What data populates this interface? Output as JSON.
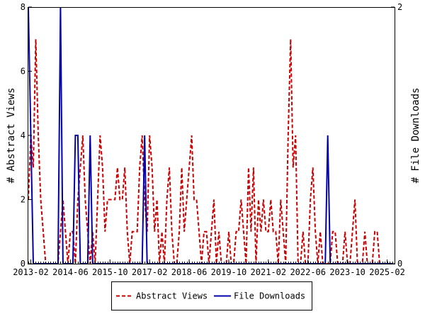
{
  "chart_data": {
    "type": "line",
    "title": "",
    "xlabel": "",
    "ylabel": "# Abstract Views",
    "y2label": "# File Downloads",
    "x_ticks": [
      "2013-02",
      "2014-06",
      "2015-10",
      "2017-02",
      "2018-06",
      "2019-10",
      "2021-02",
      "2022-06",
      "2023-10",
      "2025-02"
    ],
    "ylim": [
      0,
      8
    ],
    "y_ticks": [
      0,
      2,
      4,
      6,
      8
    ],
    "y2lim": [
      0,
      2
    ],
    "y2_ticks": [
      0,
      2
    ],
    "legend": "bottom-center",
    "grid": false,
    "series": [
      {
        "name": "Abstract Views",
        "axis": "left",
        "color": "#cc0000",
        "style": "dashed",
        "points": [
          [
            "2013-01",
            2
          ],
          [
            "2013-02",
            4
          ],
          [
            "2013-03",
            3
          ],
          [
            "2013-04",
            7
          ],
          [
            "2013-05",
            4
          ],
          [
            "2013-06",
            2
          ],
          [
            "2013-07",
            1
          ],
          [
            "2013-08",
            0
          ],
          [
            "2013-09",
            0
          ],
          [
            "2013-10",
            0
          ],
          [
            "2013-11",
            0
          ],
          [
            "2013-12",
            0
          ],
          [
            "2014-01",
            0
          ],
          [
            "2014-02",
            1
          ],
          [
            "2014-03",
            2
          ],
          [
            "2014-04",
            1
          ],
          [
            "2014-05",
            0
          ],
          [
            "2014-06",
            1
          ],
          [
            "2014-07",
            1
          ],
          [
            "2014-08",
            0
          ],
          [
            "2014-09",
            2
          ],
          [
            "2014-10",
            3
          ],
          [
            "2014-11",
            4
          ],
          [
            "2014-12",
            2
          ],
          [
            "2015-01",
            1
          ],
          [
            "2015-02",
            0
          ],
          [
            "2015-03",
            1
          ],
          [
            "2015-04",
            0
          ],
          [
            "2015-05",
            2
          ],
          [
            "2015-06",
            4
          ],
          [
            "2015-07",
            3
          ],
          [
            "2015-08",
            1
          ],
          [
            "2015-09",
            2
          ],
          [
            "2015-10",
            2
          ],
          [
            "2015-11",
            2
          ],
          [
            "2015-12",
            2
          ],
          [
            "2016-01",
            3
          ],
          [
            "2016-02",
            2
          ],
          [
            "2016-03",
            2
          ],
          [
            "2016-04",
            3
          ],
          [
            "2016-05",
            1
          ],
          [
            "2016-06",
            0
          ],
          [
            "2016-07",
            1
          ],
          [
            "2016-08",
            1
          ],
          [
            "2016-09",
            1
          ],
          [
            "2016-10",
            3
          ],
          [
            "2016-11",
            4
          ],
          [
            "2016-12",
            2
          ],
          [
            "2017-01",
            1
          ],
          [
            "2017-02",
            4
          ],
          [
            "2017-03",
            3
          ],
          [
            "2017-04",
            1
          ],
          [
            "2017-05",
            2
          ],
          [
            "2017-06",
            0
          ],
          [
            "2017-07",
            1
          ],
          [
            "2017-08",
            0
          ],
          [
            "2017-09",
            2
          ],
          [
            "2017-10",
            3
          ],
          [
            "2017-11",
            1
          ],
          [
            "2017-12",
            0
          ],
          [
            "2018-01",
            0
          ],
          [
            "2018-02",
            1
          ],
          [
            "2018-03",
            3
          ],
          [
            "2018-04",
            1
          ],
          [
            "2018-05",
            2
          ],
          [
            "2018-06",
            3
          ],
          [
            "2018-07",
            4
          ],
          [
            "2018-08",
            2
          ],
          [
            "2018-09",
            2
          ],
          [
            "2018-10",
            1
          ],
          [
            "2018-11",
            0
          ],
          [
            "2018-12",
            1
          ],
          [
            "2019-01",
            1
          ],
          [
            "2019-02",
            0
          ],
          [
            "2019-03",
            1
          ],
          [
            "2019-04",
            2
          ],
          [
            "2019-05",
            0
          ],
          [
            "2019-06",
            1
          ],
          [
            "2019-07",
            0
          ],
          [
            "2019-08",
            0
          ],
          [
            "2019-09",
            0
          ],
          [
            "2019-10",
            1
          ],
          [
            "2019-11",
            0
          ],
          [
            "2019-12",
            0
          ],
          [
            "2020-01",
            1
          ],
          [
            "2020-02",
            1
          ],
          [
            "2020-03",
            2
          ],
          [
            "2020-04",
            1
          ],
          [
            "2020-05",
            0
          ],
          [
            "2020-06",
            3
          ],
          [
            "2020-07",
            1
          ],
          [
            "2020-08",
            3
          ],
          [
            "2020-09",
            0
          ],
          [
            "2020-10",
            2
          ],
          [
            "2020-11",
            1
          ],
          [
            "2020-12",
            2
          ],
          [
            "2021-01",
            1
          ],
          [
            "2021-02",
            1
          ],
          [
            "2021-03",
            2
          ],
          [
            "2021-04",
            1
          ],
          [
            "2021-05",
            1
          ],
          [
            "2021-06",
            0
          ],
          [
            "2021-07",
            2
          ],
          [
            "2021-08",
            1
          ],
          [
            "2021-09",
            0
          ],
          [
            "2021-10",
            4
          ],
          [
            "2021-11",
            7
          ],
          [
            "2021-12",
            3
          ],
          [
            "2022-01",
            4
          ],
          [
            "2022-02",
            0
          ],
          [
            "2022-03",
            0
          ],
          [
            "2022-04",
            1
          ],
          [
            "2022-05",
            0
          ],
          [
            "2022-06",
            0
          ],
          [
            "2022-07",
            2
          ],
          [
            "2022-08",
            3
          ],
          [
            "2022-09",
            1
          ],
          [
            "2022-10",
            0
          ],
          [
            "2022-11",
            1
          ],
          [
            "2022-12",
            0
          ],
          [
            "2023-01",
            0
          ],
          [
            "2023-02",
            0
          ],
          [
            "2023-03",
            0
          ],
          [
            "2023-04",
            1
          ],
          [
            "2023-05",
            1
          ],
          [
            "2023-06",
            0
          ],
          [
            "2023-07",
            0
          ],
          [
            "2023-08",
            0
          ],
          [
            "2023-09",
            1
          ],
          [
            "2023-10",
            0
          ],
          [
            "2023-11",
            0
          ],
          [
            "2023-12",
            1
          ],
          [
            "2024-01",
            2
          ],
          [
            "2024-02",
            0
          ],
          [
            "2024-03",
            0
          ],
          [
            "2024-04",
            0
          ],
          [
            "2024-05",
            1
          ],
          [
            "2024-06",
            0
          ],
          [
            "2024-07",
            0
          ],
          [
            "2024-08",
            0
          ],
          [
            "2024-09",
            1
          ],
          [
            "2024-10",
            1
          ],
          [
            "2024-11",
            0
          ],
          [
            "2024-12",
            0
          ],
          [
            "2025-01",
            0
          ],
          [
            "2025-02",
            0
          ],
          [
            "2025-03",
            0
          ],
          [
            "2025-04",
            0
          ]
        ]
      },
      {
        "name": "File Downloads",
        "axis": "right",
        "color": "#0000aa",
        "style": "solid",
        "points": [
          [
            "2013-01",
            2
          ],
          [
            "2013-02",
            1
          ],
          [
            "2013-03",
            0
          ],
          [
            "2013-04",
            0
          ],
          [
            "2013-05",
            0
          ],
          [
            "2013-06",
            0
          ],
          [
            "2013-07",
            0
          ],
          [
            "2013-08",
            0
          ],
          [
            "2013-09",
            0
          ],
          [
            "2013-10",
            0
          ],
          [
            "2013-11",
            0
          ],
          [
            "2013-12",
            0
          ],
          [
            "2014-01",
            0
          ],
          [
            "2014-02",
            2
          ],
          [
            "2014-03",
            0
          ],
          [
            "2014-04",
            0
          ],
          [
            "2014-05",
            0
          ],
          [
            "2014-06",
            0
          ],
          [
            "2014-07",
            0
          ],
          [
            "2014-08",
            1
          ],
          [
            "2014-09",
            1
          ],
          [
            "2014-10",
            0
          ],
          [
            "2014-11",
            0
          ],
          [
            "2014-12",
            0
          ],
          [
            "2015-01",
            0
          ],
          [
            "2015-02",
            1
          ],
          [
            "2015-03",
            0
          ],
          [
            "2015-04",
            0
          ],
          [
            "2015-05",
            0
          ],
          [
            "2015-06",
            0
          ],
          [
            "2015-07",
            0
          ],
          [
            "2015-08",
            0
          ],
          [
            "2015-09",
            0
          ],
          [
            "2015-10",
            0
          ],
          [
            "2015-11",
            0
          ],
          [
            "2015-12",
            0
          ],
          [
            "2016-01",
            0
          ],
          [
            "2016-02",
            0
          ],
          [
            "2016-03",
            0
          ],
          [
            "2016-04",
            0
          ],
          [
            "2016-05",
            0
          ],
          [
            "2016-06",
            0
          ],
          [
            "2016-07",
            0
          ],
          [
            "2016-08",
            0
          ],
          [
            "2016-09",
            0
          ],
          [
            "2016-10",
            0
          ],
          [
            "2016-11",
            0
          ],
          [
            "2016-12",
            1
          ],
          [
            "2017-01",
            0
          ],
          [
            "2017-02",
            0
          ],
          [
            "2017-03",
            0
          ],
          [
            "2017-04",
            0
          ],
          [
            "2017-05",
            0
          ],
          [
            "2017-06",
            0
          ],
          [
            "2017-07",
            0
          ],
          [
            "2017-08",
            0
          ],
          [
            "2017-09",
            0
          ],
          [
            "2017-10",
            0
          ],
          [
            "2017-11",
            0
          ],
          [
            "2017-12",
            0
          ],
          [
            "2018-01",
            0
          ],
          [
            "2018-02",
            0
          ],
          [
            "2018-03",
            0
          ],
          [
            "2018-04",
            0
          ],
          [
            "2018-05",
            0
          ],
          [
            "2018-06",
            0
          ],
          [
            "2018-07",
            0
          ],
          [
            "2018-08",
            0
          ],
          [
            "2018-09",
            0
          ],
          [
            "2018-10",
            0
          ],
          [
            "2018-11",
            0
          ],
          [
            "2018-12",
            0
          ],
          [
            "2019-01",
            0
          ],
          [
            "2019-02",
            0
          ],
          [
            "2019-03",
            0
          ],
          [
            "2019-04",
            0
          ],
          [
            "2019-05",
            0
          ],
          [
            "2019-06",
            0
          ],
          [
            "2019-07",
            0
          ],
          [
            "2019-08",
            0
          ],
          [
            "2019-09",
            0
          ],
          [
            "2019-10",
            0
          ],
          [
            "2019-11",
            0
          ],
          [
            "2019-12",
            0
          ],
          [
            "2020-01",
            0
          ],
          [
            "2020-02",
            0
          ],
          [
            "2020-03",
            0
          ],
          [
            "2020-04",
            0
          ],
          [
            "2020-05",
            0
          ],
          [
            "2020-06",
            0
          ],
          [
            "2020-07",
            0
          ],
          [
            "2020-08",
            0
          ],
          [
            "2020-09",
            0
          ],
          [
            "2020-10",
            0
          ],
          [
            "2020-11",
            0
          ],
          [
            "2020-12",
            0
          ],
          [
            "2021-01",
            0
          ],
          [
            "2021-02",
            0
          ],
          [
            "2021-03",
            0
          ],
          [
            "2021-04",
            0
          ],
          [
            "2021-05",
            0
          ],
          [
            "2021-06",
            0
          ],
          [
            "2021-07",
            0
          ],
          [
            "2021-08",
            0
          ],
          [
            "2021-09",
            0
          ],
          [
            "2021-10",
            0
          ],
          [
            "2021-11",
            0
          ],
          [
            "2021-12",
            0
          ],
          [
            "2022-01",
            0
          ],
          [
            "2022-02",
            0
          ],
          [
            "2022-03",
            0
          ],
          [
            "2022-04",
            0
          ],
          [
            "2022-05",
            0
          ],
          [
            "2022-06",
            0
          ],
          [
            "2022-07",
            0
          ],
          [
            "2022-08",
            0
          ],
          [
            "2022-09",
            0
          ],
          [
            "2022-10",
            0
          ],
          [
            "2022-11",
            0
          ],
          [
            "2022-12",
            0
          ],
          [
            "2023-01",
            0
          ],
          [
            "2023-02",
            1
          ],
          [
            "2023-03",
            0
          ],
          [
            "2023-04",
            0
          ],
          [
            "2023-05",
            0
          ],
          [
            "2023-06",
            0
          ],
          [
            "2023-07",
            0
          ],
          [
            "2023-08",
            0
          ],
          [
            "2023-09",
            0
          ],
          [
            "2023-10",
            0
          ],
          [
            "2023-11",
            0
          ],
          [
            "2023-12",
            0
          ],
          [
            "2024-01",
            0
          ],
          [
            "2024-02",
            0
          ],
          [
            "2024-03",
            0
          ],
          [
            "2024-04",
            0
          ],
          [
            "2024-05",
            0
          ],
          [
            "2024-06",
            0
          ],
          [
            "2024-07",
            0
          ],
          [
            "2024-08",
            0
          ],
          [
            "2024-09",
            0
          ],
          [
            "2024-10",
            0
          ],
          [
            "2024-11",
            0
          ],
          [
            "2024-12",
            0
          ],
          [
            "2025-01",
            0
          ],
          [
            "2025-02",
            0
          ],
          [
            "2025-03",
            0
          ],
          [
            "2025-04",
            0
          ]
        ]
      }
    ]
  }
}
